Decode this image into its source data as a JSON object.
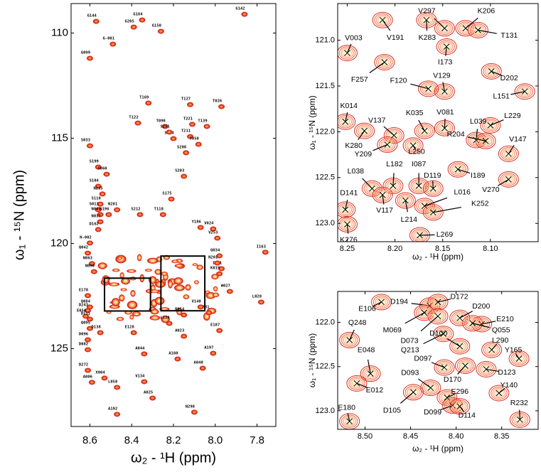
{
  "chart_data": [
    {
      "type": "scatter",
      "x_label": "ω₂ - ¹H (ppm)",
      "y_label": "ω₁ - ¹⁵N (ppm)",
      "color": "#d7301f",
      "xlim": [
        8.69,
        7.71
      ],
      "ylim": [
        128.7,
        108.6
      ],
      "xticks": [
        8.6,
        8.4,
        8.2,
        {
          "value": 8.0,
          "label": "8.0"
        },
        7.8
      ],
      "yticks": [
        110,
        115,
        120,
        125
      ],
      "labels": [
        "G144",
        "G184",
        "G205",
        "G150",
        "G142",
        "G-001",
        "G099",
        "T169",
        "T127",
        "T026",
        "T122",
        "T098",
        "T221",
        "T139",
        "S294",
        "T211",
        "T050",
        "S033",
        "S208",
        "S251",
        "S199",
        "S060",
        "S104",
        "N235",
        "S175",
        "T118",
        "S203",
        "S110",
        "S011",
        "N047",
        "N037",
        "N196",
        "N281",
        "S212",
        "V024",
        "Y186",
        "V253",
        "D162",
        "N-002",
        "Q042",
        "N063",
        "N090",
        "I163",
        "Q034",
        "I001",
        "W027",
        "L028",
        "E178",
        "Q084",
        "D243",
        "E056",
        "D111",
        "Q095",
        "E187",
        "D096",
        "D082",
        "D272",
        "A006",
        "X004",
        "L058",
        "A197",
        "A040",
        "V134",
        "A025",
        "A192",
        "N298",
        "A188",
        "K231",
        "N201",
        "K019",
        "V148",
        "R054",
        "L124",
        "A023",
        "D138",
        "E128",
        "A044"
      ],
      "x": [
        8.57,
        8.35,
        8.39,
        8.26,
        7.86,
        8.49,
        8.6,
        8.32,
        8.12,
        7.97,
        8.37,
        8.24,
        8.11,
        8.04,
        8.2,
        8.12,
        8.08,
        8.6,
        8.14,
        8.22,
        8.56,
        8.52,
        8.56,
        8.54,
        8.21,
        8.25,
        8.15,
        8.55,
        8.56,
        8.55,
        8.55,
        8.51,
        8.47,
        8.36,
        8.01,
        8.07,
        7.99,
        8.56,
        8.6,
        8.61,
        8.59,
        8.58,
        7.76,
        7.98,
        7.97,
        7.93,
        7.78,
        8.61,
        8.6,
        8.61,
        8.62,
        8.6,
        8.6,
        7.98,
        8.61,
        8.61,
        8.61,
        8.59,
        8.53,
        8.47,
        8.01,
        8.06,
        8.34,
        8.3,
        8.47,
        8.1,
        8.18,
        8.03,
        7.99,
        7.98,
        8.07,
        8.15,
        8.22,
        8.15,
        8.55,
        8.39,
        8.34
      ],
      "values": [
        109.45,
        109.38,
        109.72,
        109.92,
        109.11,
        110.53,
        111.2,
        113.33,
        113.4,
        113.5,
        114.28,
        114.44,
        114.34,
        114.44,
        115.02,
        114.92,
        115.29,
        115.36,
        115.69,
        114.71,
        116.37,
        116.71,
        117.28,
        117.65,
        117.89,
        118.63,
        116.81,
        118.13,
        118.4,
        118.63,
        118.97,
        118.63,
        118.4,
        118.63,
        119.31,
        119.24,
        119.75,
        119.34,
        119.98,
        120.46,
        120.96,
        121.34,
        120.42,
        120.59,
        121.2,
        122.28,
        122.79,
        122.48,
        123.02,
        123.19,
        123.46,
        123.6,
        124.04,
        124.14,
        124.58,
        125.05,
        126.03,
        126.6,
        126.4,
        126.84,
        125.22,
        125.93,
        126.57,
        127.35,
        128.12,
        128.02,
        125.49,
        123.29,
        120.93,
        121.44,
        123.02,
        123.4,
        123.8,
        124.41,
        124.24,
        124.24,
        125.25
      ]
    },
    {
      "type": "scatter",
      "x_label": "ω₂ - ¹H (ppm)",
      "y_label": "ω₁ - ¹⁵N (ppm)",
      "color": "#d7301f",
      "xlim": [
        8.26,
        8.05
      ],
      "ylim": [
        123.2,
        120.6
      ],
      "xticks": [
        8.25,
        {
          "value": 8.2,
          "label": "8.20"
        },
        8.15,
        {
          "value": 8.1,
          "label": "8.10"
        }
      ],
      "yticks": [
        {
          "value": 121,
          "label": "121.0"
        },
        121.5,
        {
          "value": 122,
          "label": "122.0"
        },
        122.5,
        {
          "value": 123,
          "label": "123.0"
        }
      ],
      "labels": [
        "V297",
        "K206",
        "T131",
        "V003",
        "V191",
        "K283",
        "I173",
        "F257",
        "F120",
        "V129",
        "D202",
        "L151",
        "K014",
        "V137",
        "K035",
        "V081",
        "L229",
        "L039",
        "R204",
        "V147",
        "K280",
        "Y209",
        "L250",
        "L182",
        "I087",
        "D119",
        "I189",
        "V270",
        "L038",
        "L016",
        "D141",
        "V117",
        "L214",
        "K252",
        "K276",
        "L269"
      ],
      "x": [
        8.148,
        8.126,
        8.113,
        8.25,
        8.213,
        8.167,
        8.146,
        8.211,
        8.165,
        8.148,
        8.099,
        8.064,
        8.252,
        8.201,
        8.169,
        8.148,
        8.1,
        8.115,
        8.105,
        8.081,
        8.232,
        8.208,
        8.181,
        8.202,
        8.175,
        8.16,
        8.134,
        8.081,
        8.224,
        8.169,
        8.252,
        8.213,
        8.189,
        8.16,
        8.25,
        8.174
      ],
      "values": [
        120.87,
        120.87,
        120.89,
        121.14,
        120.78,
        120.78,
        121.07,
        121.24,
        121.53,
        121.56,
        121.34,
        121.56,
        121.89,
        122.04,
        121.99,
        121.96,
        121.93,
        122.09,
        122.1,
        122.24,
        121.99,
        122.14,
        122.15,
        122.59,
        122.59,
        122.62,
        122.41,
        122.52,
        122.62,
        122.81,
        122.85,
        122.69,
        122.75,
        122.88,
        123.01,
        123.13
      ]
    },
    {
      "type": "scatter",
      "x_label": "ω₂ - ¹H (ppm)",
      "y_label": "ω₁ - ¹⁵N (ppm)",
      "color": "#d7301f",
      "xlim": [
        8.53,
        8.31
      ],
      "ylim": [
        123.21,
        121.65
      ],
      "xticks": [
        {
          "value": 8.5,
          "label": "8.50"
        },
        8.45,
        {
          "value": 8.4,
          "label": "8.40"
        },
        8.35
      ],
      "yticks": [
        {
          "value": 122,
          "label": "122.0"
        },
        122.5,
        {
          "value": 123,
          "label": "123.0"
        }
      ],
      "labels": [
        "E106",
        "D194",
        "D172",
        "D200",
        "E210",
        "Q055",
        "Q248",
        "M069",
        "D073",
        "Q213",
        "D100",
        "L290",
        "Y165",
        "E048",
        "D097",
        "D123",
        "D170",
        "E012",
        "D093",
        "Y140",
        "E296",
        "D099",
        "D105",
        "D114",
        "E180",
        "R232"
      ],
      "x": [
        8.482,
        8.429,
        8.42,
        8.396,
        8.372,
        8.382,
        8.517,
        8.435,
        8.42,
        8.414,
        8.396,
        8.361,
        8.331,
        8.494,
        8.413,
        8.367,
        8.39,
        8.509,
        8.428,
        8.353,
        8.41,
        8.404,
        8.447,
        8.396,
        8.517,
        8.33
      ],
      "values": [
        121.77,
        121.81,
        121.77,
        121.95,
        122.02,
        122.01,
        122.2,
        121.89,
        121.93,
        122.13,
        122.27,
        122.31,
        122.41,
        122.58,
        122.51,
        122.53,
        122.49,
        122.69,
        122.74,
        122.8,
        122.85,
        122.94,
        122.79,
        122.95,
        123.12,
        123.1
      ]
    }
  ]
}
